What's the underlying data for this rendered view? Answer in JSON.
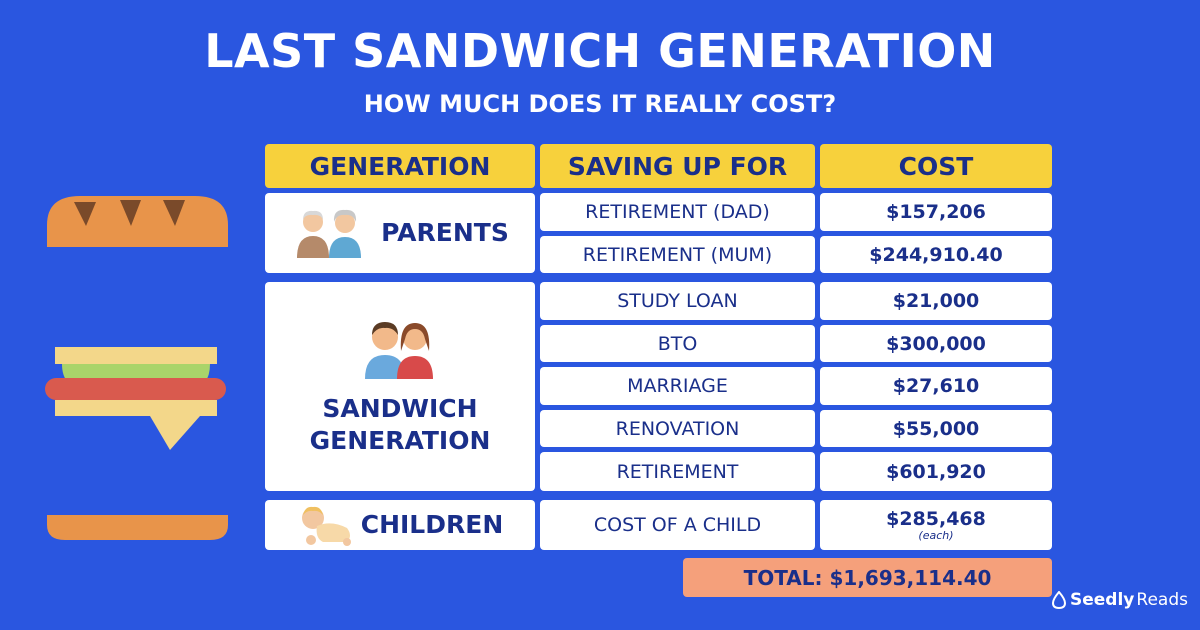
{
  "title": "LAST SANDWICH GENERATION",
  "subtitle": "HOW MUCH DOES IT REALLY COST?",
  "headers": {
    "generation": "GENERATION",
    "saving": "SAVING UP FOR",
    "cost": "COST"
  },
  "groups": {
    "parents": {
      "label": "PARENTS",
      "rows": [
        {
          "item": "RETIREMENT (DAD)",
          "cost": "$157,206"
        },
        {
          "item": "RETIREMENT (MUM)",
          "cost": "$244,910.40"
        }
      ]
    },
    "sandwich": {
      "label_line1": "SANDWICH",
      "label_line2": "GENERATION",
      "rows": [
        {
          "item": "STUDY LOAN",
          "cost": "$21,000"
        },
        {
          "item": "BTO",
          "cost": "$300,000"
        },
        {
          "item": "MARRIAGE",
          "cost": "$27,610"
        },
        {
          "item": "RENOVATION",
          "cost": "$55,000"
        },
        {
          "item": "RETIREMENT",
          "cost": "$601,920"
        }
      ]
    },
    "children": {
      "label": "CHILDREN",
      "rows": [
        {
          "item": "COST OF A CHILD",
          "cost": "$285,468",
          "note": "(each)"
        }
      ]
    }
  },
  "total": "TOTAL: $1,693,114.40",
  "logo": {
    "brand": "Seedly",
    "suffix": "Reads"
  },
  "colors": {
    "background": "#2a56e0",
    "header": "#f7d13c",
    "total": "#f5a07b",
    "text": "#1a2f8a"
  }
}
